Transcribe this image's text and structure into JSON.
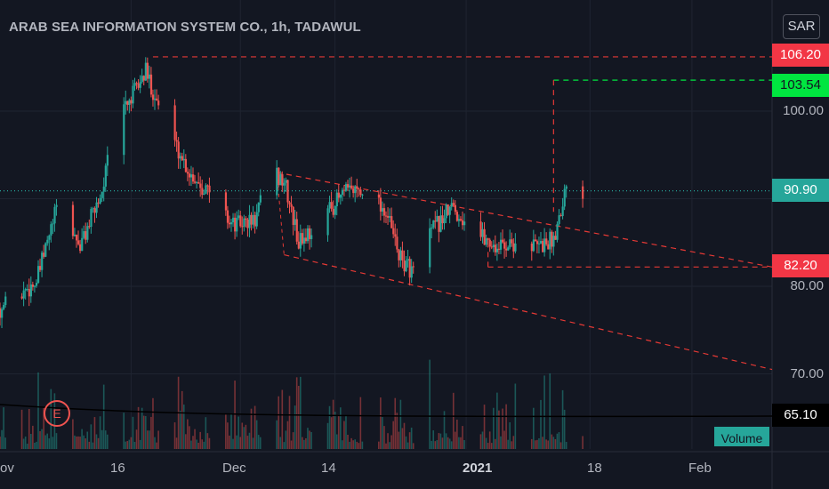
{
  "header": {
    "title": "ARAB SEA INFORMATION SYSTEM CO., 1h, TADAWUL",
    "currency": "SAR"
  },
  "y_axis": {
    "ticks": [
      "100.00",
      "80.00",
      "70.00"
    ]
  },
  "x_axis": {
    "ticks": [
      "ov",
      "16",
      "Dec",
      "14",
      "2021",
      "18",
      "Feb"
    ]
  },
  "price_tags": {
    "resistance": "106.20",
    "target": "103.54",
    "last": "90.90",
    "support": "82.20",
    "volume_ma": "65.10"
  },
  "indicators": {
    "event_marker": "E",
    "volume_label": "Volume"
  },
  "colors": {
    "background": "#131722",
    "up": "#26a69a",
    "down": "#ef5350",
    "trendline": "#e53935",
    "target_line": "#4caf50",
    "last_price_line": "#26a69a"
  },
  "chart_data": {
    "type": "candlestick",
    "title": "ARAB SEA INFORMATION SYSTEM CO., 1h, TADAWUL",
    "ylim": [
      64,
      108
    ],
    "x_range": [
      "2020-10-29",
      "2021-02-12"
    ],
    "x_ticks": [
      {
        "label": "16",
        "date": "2020-11-16"
      },
      {
        "label": "Dec",
        "date": "2020-12-01"
      },
      {
        "label": "14",
        "date": "2020-12-14"
      },
      {
        "label": "2021",
        "date": "2021-01-01"
      },
      {
        "label": "18",
        "date": "2021-01-18"
      },
      {
        "label": "Feb",
        "date": "2021-02-01"
      }
    ],
    "price_path": [
      {
        "date": "2020-10-29",
        "price": 77.5
      },
      {
        "date": "2020-11-03",
        "price": 80.5
      },
      {
        "date": "2020-11-06",
        "price": 89.5
      },
      {
        "date": "2020-11-09",
        "price": 84.5
      },
      {
        "date": "2020-11-12",
        "price": 91.0
      },
      {
        "date": "2020-11-14",
        "price": 99.5
      },
      {
        "date": "2020-11-16",
        "price": 101.5
      },
      {
        "date": "2020-11-18",
        "price": 104.5
      },
      {
        "date": "2020-11-21",
        "price": 98.0
      },
      {
        "date": "2020-11-24",
        "price": 93.0
      },
      {
        "date": "2020-11-27",
        "price": 90.5
      },
      {
        "date": "2020-11-30",
        "price": 87.0
      },
      {
        "date": "2020-12-03",
        "price": 87.5
      },
      {
        "date": "2020-12-05",
        "price": 93.0
      },
      {
        "date": "2020-12-07",
        "price": 92.0
      },
      {
        "date": "2020-12-09",
        "price": 85.0
      },
      {
        "date": "2020-12-12",
        "price": 87.5
      },
      {
        "date": "2020-12-15",
        "price": 90.5
      },
      {
        "date": "2020-12-18",
        "price": 91.5
      },
      {
        "date": "2020-12-21",
        "price": 88.5
      },
      {
        "date": "2020-12-23",
        "price": 83.0
      },
      {
        "date": "2020-12-25",
        "price": 81.5
      },
      {
        "date": "2020-12-27",
        "price": 86.0
      },
      {
        "date": "2020-12-30",
        "price": 89.0
      },
      {
        "date": "2021-01-02",
        "price": 86.5
      },
      {
        "date": "2021-01-05",
        "price": 84.5
      },
      {
        "date": "2021-01-08",
        "price": 85.0
      },
      {
        "date": "2021-01-11",
        "price": 84.5
      },
      {
        "date": "2021-01-13",
        "price": 85.5
      },
      {
        "date": "2021-01-15",
        "price": 92.5
      },
      {
        "date": "2021-01-17",
        "price": 90.9
      }
    ],
    "last_price": 90.9,
    "levels": [
      {
        "price": 106.2,
        "style": "red dashed"
      },
      {
        "price": 103.54,
        "style": "green dashed"
      },
      {
        "price": 90.9,
        "style": "teal dotted"
      },
      {
        "price": 82.2,
        "style": "red dashed"
      }
    ],
    "trendlines": [
      {
        "from": {
          "date": "2020-12-06",
          "price": 93.0
        },
        "to": {
          "date": "2021-02-12",
          "price": 82.2
        }
      },
      {
        "from": {
          "date": "2020-12-07",
          "price": 83.6
        },
        "to": {
          "date": "2021-02-12",
          "price": 70.5
        }
      }
    ],
    "volume_ma": 65.1,
    "grid": true
  }
}
